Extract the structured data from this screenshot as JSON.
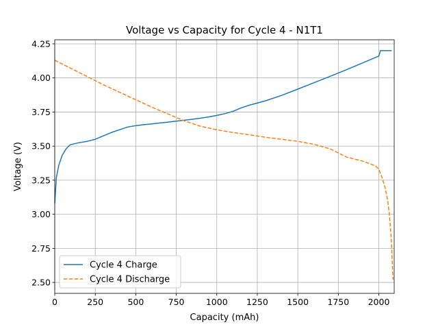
{
  "chart_data": {
    "type": "line",
    "title": "Voltage vs Capacity for Cycle 4 - N1T1",
    "xlabel": "Capacity (mAh)",
    "ylabel": "Voltage (V)",
    "xlim": [
      0,
      2095
    ],
    "ylim": [
      2.42,
      4.28
    ],
    "xticks": [
      0,
      250,
      500,
      750,
      1000,
      1250,
      1500,
      1750,
      2000
    ],
    "yticks": [
      2.5,
      2.75,
      3.0,
      3.25,
      3.5,
      3.75,
      4.0,
      4.25
    ],
    "grid": true,
    "legend_position": "lower-left",
    "series": [
      {
        "name": "Cycle 4 Charge",
        "color": "#1f77b4",
        "style": "solid",
        "x": [
          0,
          10,
          25,
          45,
          70,
          95,
          150,
          200,
          250,
          300,
          350,
          400,
          450,
          500,
          550,
          600,
          650,
          700,
          750,
          800,
          850,
          900,
          950,
          1000,
          1050,
          1100,
          1150,
          1200,
          1300,
          1400,
          1500,
          1600,
          1700,
          1800,
          1900,
          2000,
          2010,
          2050,
          2080
        ],
        "y": [
          3.08,
          3.27,
          3.36,
          3.43,
          3.48,
          3.51,
          3.525,
          3.535,
          3.55,
          3.575,
          3.6,
          3.62,
          3.64,
          3.65,
          3.657,
          3.663,
          3.67,
          3.676,
          3.683,
          3.69,
          3.697,
          3.705,
          3.714,
          3.725,
          3.738,
          3.755,
          3.78,
          3.8,
          3.832,
          3.872,
          3.918,
          3.965,
          4.012,
          4.06,
          4.11,
          4.16,
          4.2,
          4.2,
          4.2
        ]
      },
      {
        "name": "Cycle 4 Discharge",
        "color": "#ff7f0e",
        "style": "dashed",
        "x": [
          0,
          100,
          200,
          300,
          400,
          500,
          600,
          700,
          800,
          900,
          1000,
          1100,
          1200,
          1300,
          1400,
          1500,
          1600,
          1700,
          1750,
          1800,
          1900,
          1980,
          2000,
          2020,
          2040,
          2055,
          2065,
          2072,
          2078,
          2083,
          2088
        ],
        "y": [
          4.13,
          4.07,
          4.01,
          3.95,
          3.895,
          3.84,
          3.785,
          3.735,
          3.685,
          3.645,
          3.62,
          3.6,
          3.583,
          3.565,
          3.55,
          3.535,
          3.513,
          3.48,
          3.45,
          3.42,
          3.39,
          3.355,
          3.33,
          3.27,
          3.19,
          3.1,
          3.0,
          2.9,
          2.8,
          2.65,
          2.52
        ]
      }
    ]
  }
}
